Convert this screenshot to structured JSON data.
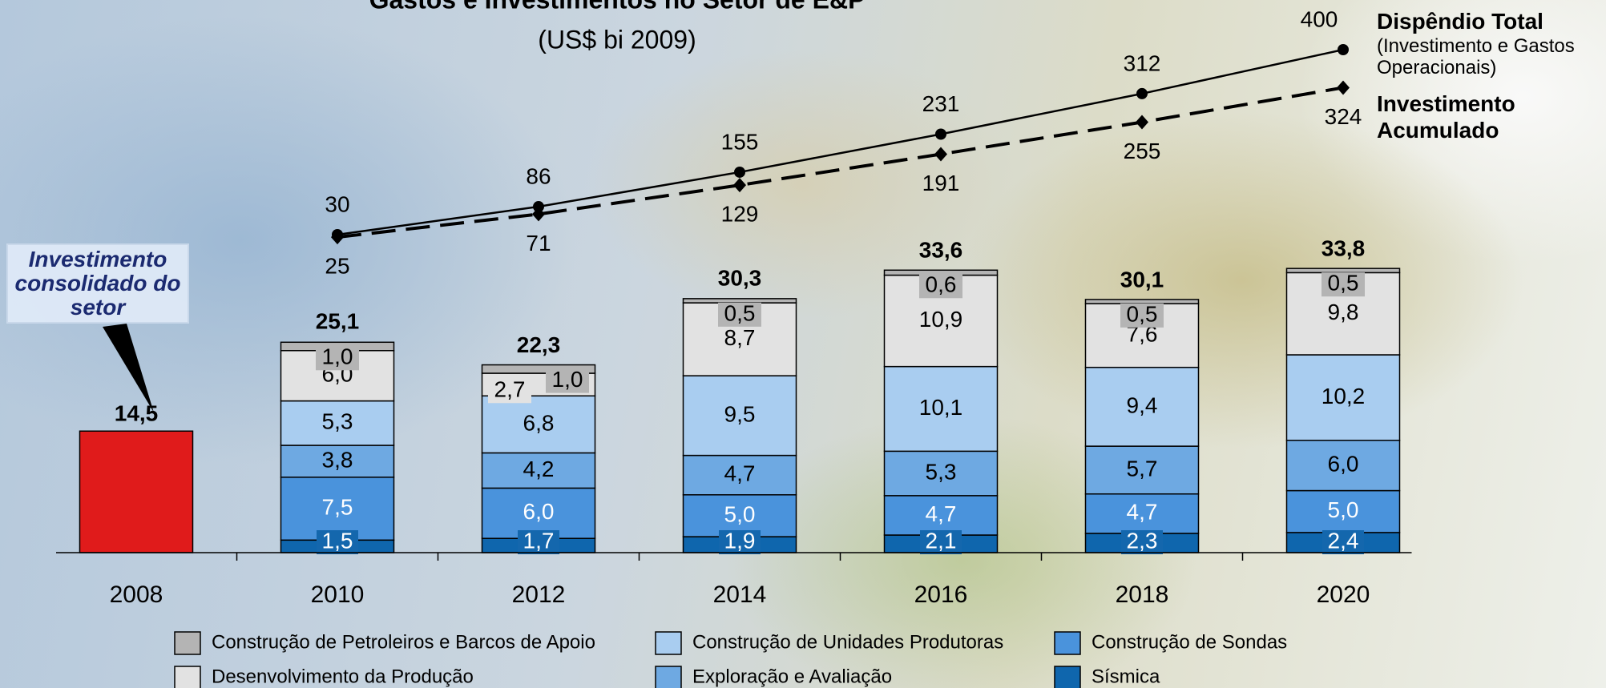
{
  "chart_data": {
    "type": "bar",
    "title": "Gastos e Investimentos no Setor de E&P",
    "subtitle": "(US$ bi 2009)",
    "categories": [
      "2008",
      "2010",
      "2012",
      "2014",
      "2016",
      "2018",
      "2020"
    ],
    "ylim": [
      0,
      60
    ],
    "y2lim": [
      -606,
      400
    ],
    "series": [
      {
        "name": "Investimento consolidado do setor",
        "color": "#e01b1b",
        "values": [
          14.5,
          null,
          null,
          null,
          null,
          null,
          null
        ],
        "value_labels": [
          "14,5",
          null,
          null,
          null,
          null,
          null,
          null
        ]
      },
      {
        "name": "Sísmica",
        "color": "#0f66ad",
        "values": [
          null,
          1.5,
          1.7,
          1.9,
          2.1,
          2.3,
          2.4
        ],
        "value_labels": [
          null,
          "1,5",
          "1,7",
          "1,9",
          "2,1",
          "2,3",
          "2,4"
        ]
      },
      {
        "name": "Construção de Sondas",
        "color": "#4a93dc",
        "values": [
          null,
          7.5,
          6.0,
          5.0,
          4.7,
          4.7,
          5.0
        ],
        "value_labels": [
          null,
          "7,5",
          "6,0",
          "5,0",
          "4,7",
          "4,7",
          "5,0"
        ]
      },
      {
        "name": "Exploração e Avaliação",
        "color": "#6ea9e2",
        "values": [
          null,
          3.8,
          4.2,
          4.7,
          5.3,
          5.7,
          6.0
        ],
        "value_labels": [
          null,
          "3,8",
          "4,2",
          "4,7",
          "5,3",
          "5,7",
          "6,0"
        ]
      },
      {
        "name": "Construção de Unidades Produtoras",
        "color": "#a9cdf0",
        "values": [
          null,
          5.3,
          6.8,
          9.5,
          10.1,
          9.4,
          10.2
        ],
        "value_labels": [
          null,
          "5,3",
          "6,8",
          "9,5",
          "10,1",
          "9,4",
          "10,2"
        ]
      },
      {
        "name": "Desenvolvimento da Produção",
        "color": "#e2e2e2",
        "values": [
          null,
          6.0,
          2.7,
          8.7,
          10.9,
          7.6,
          9.8
        ],
        "value_labels": [
          null,
          "6,0",
          "2,7",
          "8,7",
          "10,9",
          "7,6",
          "9,8"
        ]
      },
      {
        "name": "Construção de Petroleiros e Barcos de Apoio",
        "color": "#b4b4b4",
        "values": [
          null,
          1.0,
          1.0,
          0.5,
          0.6,
          0.5,
          0.5
        ],
        "value_labels": [
          null,
          "1,0",
          "1,0",
          "0,5",
          "0,6",
          "0,5",
          "0,5"
        ]
      },
      {
        "name": "Dispêndio Total",
        "description": "(Investimento e Gastos Operacionais)",
        "type": "line",
        "axis": "y2",
        "color": "#000000",
        "values": [
          null,
          30,
          86,
          155,
          231,
          312,
          400
        ]
      },
      {
        "name": "Investimento Acumulado",
        "type": "line",
        "axis": "y2",
        "dashed": true,
        "color": "#000000",
        "values": [
          null,
          25,
          71,
          129,
          191,
          255,
          324
        ]
      }
    ],
    "totals": {
      "values": [
        null,
        25.1,
        22.3,
        30.3,
        33.6,
        30.1,
        33.8
      ],
      "value_labels": [
        null,
        "25,1",
        "22,3",
        "30,3",
        "33,6",
        "30,1",
        "33,8"
      ]
    }
  }
}
